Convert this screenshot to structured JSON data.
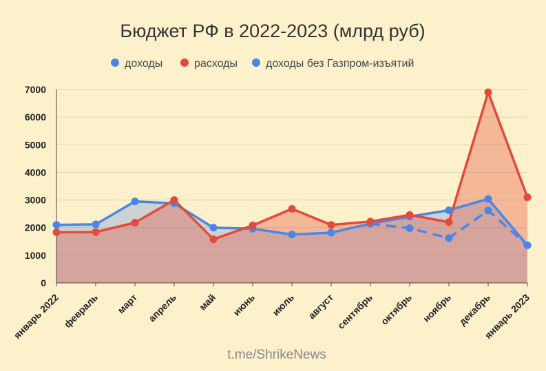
{
  "chart_data": {
    "type": "area",
    "title": "Бюджет РФ в 2022-2023 (млрд руб)",
    "categories": [
      "январь 2022",
      "февраль",
      "март",
      "апрель",
      "май",
      "июнь",
      "июль",
      "август",
      "сентябрь",
      "октябрь",
      "ноябрь",
      "декабрь",
      "январь 2023"
    ],
    "ylim": [
      0,
      7000
    ],
    "yticks": [
      0,
      1000,
      2000,
      3000,
      4000,
      5000,
      6000,
      7000
    ],
    "grid": true,
    "legend_position": "top",
    "series": [
      {
        "name": "доходы",
        "color": "#4a86e8",
        "values": [
          2100,
          2120,
          2950,
          2880,
          2000,
          1960,
          1750,
          1820,
          2140,
          2400,
          2630,
          3040,
          1360
        ]
      },
      {
        "name": "расходы",
        "color": "#e34a3c",
        "values": [
          1830,
          1840,
          2180,
          3000,
          1580,
          2080,
          2680,
          2100,
          2220,
          2460,
          2200,
          6900,
          3100
        ]
      },
      {
        "name": "доходы без Газпром-изъятий",
        "color": "#4a86e8",
        "style": "dashed",
        "values": [
          null,
          null,
          null,
          null,
          null,
          null,
          null,
          null,
          2140,
          1980,
          1620,
          2620,
          1360
        ]
      }
    ]
  },
  "source": "t.me/ShrikeNews"
}
